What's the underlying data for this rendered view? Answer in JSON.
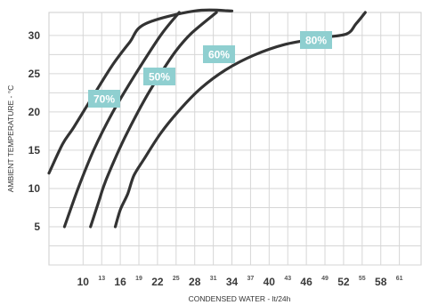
{
  "chart_data": {
    "type": "line",
    "xlabel": "CONDENSED WATER - lt/24h",
    "ylabel": "AMBIENT TEMPERATURE - °C",
    "xlim": [
      4.5,
      64.5
    ],
    "ylim": [
      0,
      33
    ],
    "x_major_ticks": [
      10,
      16,
      22,
      28,
      34,
      40,
      46,
      52,
      58
    ],
    "x_minor_ticks": [
      13,
      19,
      25,
      31,
      37,
      43,
      49,
      55,
      61
    ],
    "y_ticks": [
      5,
      10,
      15,
      20,
      25,
      30
    ],
    "grid": true,
    "series": [
      {
        "name": "50%",
        "points": [
          [
            7,
            5
          ],
          [
            9.2,
            10
          ],
          [
            11.7,
            15
          ],
          [
            14.8,
            20
          ],
          [
            18.5,
            25
          ],
          [
            22.5,
            30
          ],
          [
            25.5,
            33
          ]
        ]
      },
      {
        "name": "60%",
        "points": [
          [
            11.2,
            5
          ],
          [
            12.5,
            8.2
          ],
          [
            13.2,
            10
          ],
          [
            14.2,
            12.1
          ],
          [
            16.7,
            16.6
          ],
          [
            20,
            21.7
          ],
          [
            22.5,
            25
          ],
          [
            25,
            28
          ],
          [
            27.5,
            30.3
          ],
          [
            31.5,
            33
          ]
        ]
      },
      {
        "name": "70%",
        "points": [
          [
            4.5,
            12
          ],
          [
            6.7,
            15.8
          ],
          [
            8.5,
            18
          ],
          [
            12,
            22.6
          ],
          [
            14.8,
            26.2
          ],
          [
            17.5,
            29.1
          ],
          [
            20,
            31.5
          ],
          [
            28,
            33.2
          ],
          [
            34,
            33.2
          ]
        ]
      },
      {
        "name": "80%",
        "points": [
          [
            15.2,
            5
          ],
          [
            16,
            7.2
          ],
          [
            17.2,
            9.3
          ],
          [
            18.2,
            11.7
          ],
          [
            19.8,
            13.8
          ],
          [
            22.5,
            17.2
          ],
          [
            25.5,
            20.2
          ],
          [
            29,
            23.1
          ],
          [
            33,
            25.5
          ],
          [
            37.5,
            27.4
          ],
          [
            42.5,
            28.8
          ],
          [
            48.5,
            29.7
          ],
          [
            52.5,
            30.2
          ],
          [
            54,
            31.5
          ],
          [
            55.5,
            33
          ]
        ]
      }
    ]
  }
}
